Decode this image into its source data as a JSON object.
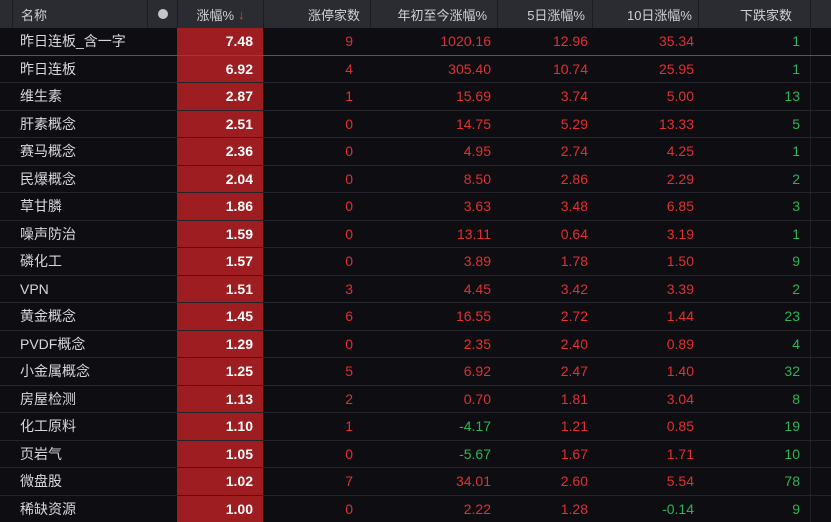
{
  "columns": [
    {
      "key": "name",
      "label": "名称"
    },
    {
      "key": "dot",
      "label": "",
      "icon": "dot"
    },
    {
      "key": "change",
      "label": "涨幅%",
      "sorted": "desc",
      "sort_arrow": "↓"
    },
    {
      "key": "limit_up",
      "label": "涨停家数"
    },
    {
      "key": "ytd",
      "label": "年初至今涨幅%"
    },
    {
      "key": "d5",
      "label": "5日涨幅%"
    },
    {
      "key": "d10",
      "label": "10日涨幅%"
    },
    {
      "key": "decliners",
      "label": "下跌家数"
    }
  ],
  "rows": [
    {
      "name": "昨日连板_含一字",
      "change": "7.48",
      "limit_up": "9",
      "ytd": "1020.16",
      "d5": "12.96",
      "d10": "35.34",
      "decliners": "1"
    },
    {
      "name": "昨日连板",
      "change": "6.92",
      "limit_up": "4",
      "ytd": "305.40",
      "d5": "10.74",
      "d10": "25.95",
      "decliners": "1"
    },
    {
      "name": "维生素",
      "change": "2.87",
      "limit_up": "1",
      "ytd": "15.69",
      "d5": "3.74",
      "d10": "5.00",
      "decliners": "13"
    },
    {
      "name": "肝素概念",
      "change": "2.51",
      "limit_up": "0",
      "ytd": "14.75",
      "d5": "5.29",
      "d10": "13.33",
      "decliners": "5"
    },
    {
      "name": "赛马概念",
      "change": "2.36",
      "limit_up": "0",
      "ytd": "4.95",
      "d5": "2.74",
      "d10": "4.25",
      "decliners": "1"
    },
    {
      "name": "民爆概念",
      "change": "2.04",
      "limit_up": "0",
      "ytd": "8.50",
      "d5": "2.86",
      "d10": "2.29",
      "decliners": "2"
    },
    {
      "name": "草甘膦",
      "change": "1.86",
      "limit_up": "0",
      "ytd": "3.63",
      "d5": "3.48",
      "d10": "6.85",
      "decliners": "3"
    },
    {
      "name": "噪声防治",
      "change": "1.59",
      "limit_up": "0",
      "ytd": "13.11",
      "d5": "0.64",
      "d10": "3.19",
      "decliners": "1"
    },
    {
      "name": "磷化工",
      "change": "1.57",
      "limit_up": "0",
      "ytd": "3.89",
      "d5": "1.78",
      "d10": "1.50",
      "decliners": "9"
    },
    {
      "name": "VPN",
      "change": "1.51",
      "limit_up": "3",
      "ytd": "4.45",
      "d5": "3.42",
      "d10": "3.39",
      "decliners": "2"
    },
    {
      "name": "黄金概念",
      "change": "1.45",
      "limit_up": "6",
      "ytd": "16.55",
      "d5": "2.72",
      "d10": "1.44",
      "decliners": "23"
    },
    {
      "name": "PVDF概念",
      "change": "1.29",
      "limit_up": "0",
      "ytd": "2.35",
      "d5": "2.40",
      "d10": "0.89",
      "decliners": "4"
    },
    {
      "name": "小金属概念",
      "change": "1.25",
      "limit_up": "5",
      "ytd": "6.92",
      "d5": "2.47",
      "d10": "1.40",
      "decliners": "32"
    },
    {
      "name": "房屋检测",
      "change": "1.13",
      "limit_up": "2",
      "ytd": "0.70",
      "d5": "1.81",
      "d10": "3.04",
      "decliners": "8"
    },
    {
      "name": "化工原料",
      "change": "1.10",
      "limit_up": "1",
      "ytd": "-4.17",
      "d5": "1.21",
      "d10": "0.85",
      "decliners": "19"
    },
    {
      "name": "页岩气",
      "change": "1.05",
      "limit_up": "0",
      "ytd": "-5.67",
      "d5": "1.67",
      "d10": "1.71",
      "decliners": "10"
    },
    {
      "name": "微盘股",
      "change": "1.02",
      "limit_up": "7",
      "ytd": "34.01",
      "d5": "2.60",
      "d10": "5.54",
      "decliners": "78"
    },
    {
      "name": "稀缺资源",
      "change": "1.00",
      "limit_up": "0",
      "ytd": "2.22",
      "d5": "1.28",
      "d10": "-0.14",
      "decliners": "9"
    }
  ],
  "colors": {
    "up": "#e12f33",
    "down": "#2ab457",
    "change_cell_bg": "#9e1d21",
    "header_bg": "#2b2b32",
    "row_bg": "#0e0e12",
    "sort_arrow": "#e8432b"
  }
}
